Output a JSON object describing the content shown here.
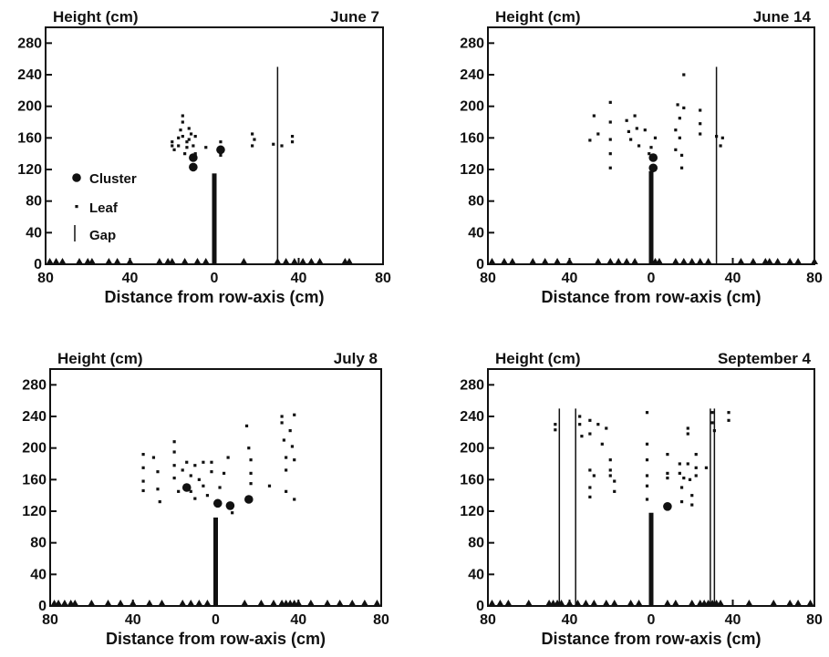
{
  "colors": {
    "ink": "#111111",
    "background": "#ffffff"
  },
  "legend": {
    "cluster_label": "Cluster",
    "leaf_label": "Leaf",
    "gap_label": "Gap"
  },
  "chart_data": [
    {
      "type": "scatter",
      "date": "June 7",
      "ylabel": "Height (cm)",
      "xlabel": "Distance from row-axis (cm)",
      "xlim": [
        -80,
        80
      ],
      "ylim": [
        0,
        300
      ],
      "x_tick_values": [
        -80,
        -40,
        0,
        40,
        80
      ],
      "x_tick_labels": [
        "80",
        "40",
        "0",
        "40",
        "80"
      ],
      "y_tick_values": [
        0,
        40,
        80,
        120,
        160,
        200,
        240,
        280
      ],
      "y_tick_labels": [
        "0",
        "40",
        "80",
        "120",
        "160",
        "200",
        "240",
        "280"
      ],
      "has_legend": true,
      "trunk": {
        "x": 0,
        "height": 115
      },
      "gaps": [
        {
          "x": 30,
          "height": 250
        }
      ],
      "clusters": [
        {
          "x": -10,
          "y": 135
        },
        {
          "x": -10,
          "y": 123
        },
        {
          "x": 3,
          "y": 145
        }
      ],
      "leaves": [
        {
          "x": -20,
          "y": 150
        },
        {
          "x": -20,
          "y": 155
        },
        {
          "x": -19,
          "y": 145
        },
        {
          "x": -17,
          "y": 160
        },
        {
          "x": -17,
          "y": 150
        },
        {
          "x": -16,
          "y": 170
        },
        {
          "x": -15,
          "y": 180
        },
        {
          "x": -15,
          "y": 188
        },
        {
          "x": -15,
          "y": 162
        },
        {
          "x": -14,
          "y": 140
        },
        {
          "x": -13,
          "y": 155
        },
        {
          "x": -13,
          "y": 148
        },
        {
          "x": -12,
          "y": 172
        },
        {
          "x": -12,
          "y": 158
        },
        {
          "x": -11,
          "y": 165
        },
        {
          "x": -10,
          "y": 150
        },
        {
          "x": -9,
          "y": 140
        },
        {
          "x": -9,
          "y": 162
        },
        {
          "x": -4,
          "y": 148
        },
        {
          "x": 3,
          "y": 155
        },
        {
          "x": 3,
          "y": 138
        },
        {
          "x": 18,
          "y": 165
        },
        {
          "x": 18,
          "y": 150
        },
        {
          "x": 19,
          "y": 158
        },
        {
          "x": 28,
          "y": 152
        },
        {
          "x": 32,
          "y": 150
        },
        {
          "x": 37,
          "y": 162
        },
        {
          "x": 37,
          "y": 155
        }
      ],
      "ground_markers": [
        -78,
        -75,
        -72,
        -64,
        -60,
        -58,
        -50,
        -46,
        -40,
        -26,
        -22,
        -20,
        -14,
        -8,
        -4,
        14,
        30,
        34,
        38,
        42,
        46,
        50,
        62,
        64
      ]
    },
    {
      "type": "scatter",
      "date": "June 14",
      "ylabel": "Height (cm)",
      "xlabel": "Distance from row-axis (cm)",
      "xlim": [
        -80,
        80
      ],
      "ylim": [
        0,
        300
      ],
      "x_tick_values": [
        -80,
        -40,
        0,
        40,
        80
      ],
      "x_tick_labels": [
        "80",
        "40",
        "0",
        "40",
        "80"
      ],
      "y_tick_values": [
        0,
        40,
        80,
        120,
        160,
        200,
        240,
        280
      ],
      "y_tick_labels": [
        "0",
        "40",
        "80",
        "120",
        "160",
        "200",
        "240",
        "280"
      ],
      "has_legend": false,
      "trunk": {
        "x": 0,
        "height": 118
      },
      "gaps": [
        {
          "x": 32,
          "height": 250
        }
      ],
      "clusters": [
        {
          "x": 1,
          "y": 135
        },
        {
          "x": 1,
          "y": 122
        }
      ],
      "leaves": [
        {
          "x": -30,
          "y": 157
        },
        {
          "x": -28,
          "y": 188
        },
        {
          "x": -26,
          "y": 165
        },
        {
          "x": -20,
          "y": 122
        },
        {
          "x": -20,
          "y": 140
        },
        {
          "x": -20,
          "y": 158
        },
        {
          "x": -20,
          "y": 180
        },
        {
          "x": -20,
          "y": 205
        },
        {
          "x": -12,
          "y": 182
        },
        {
          "x": -11,
          "y": 168
        },
        {
          "x": -10,
          "y": 158
        },
        {
          "x": -8,
          "y": 188
        },
        {
          "x": -7,
          "y": 172
        },
        {
          "x": -6,
          "y": 150
        },
        {
          "x": -3,
          "y": 170
        },
        {
          "x": -1,
          "y": 140
        },
        {
          "x": 0,
          "y": 148
        },
        {
          "x": 2,
          "y": 160
        },
        {
          "x": 12,
          "y": 145
        },
        {
          "x": 12,
          "y": 170
        },
        {
          "x": 13,
          "y": 202
        },
        {
          "x": 14,
          "y": 185
        },
        {
          "x": 14,
          "y": 160
        },
        {
          "x": 15,
          "y": 138
        },
        {
          "x": 15,
          "y": 122
        },
        {
          "x": 16,
          "y": 240
        },
        {
          "x": 16,
          "y": 198
        },
        {
          "x": 24,
          "y": 165
        },
        {
          "x": 24,
          "y": 178
        },
        {
          "x": 24,
          "y": 195
        },
        {
          "x": 32,
          "y": 162
        },
        {
          "x": 34,
          "y": 150
        },
        {
          "x": 35,
          "y": 160
        }
      ],
      "ground_markers": [
        -78,
        -72,
        -68,
        -58,
        -52,
        -46,
        -40,
        -26,
        -20,
        -16,
        -12,
        -8,
        2,
        4,
        12,
        16,
        20,
        24,
        28,
        44,
        50,
        56,
        58,
        62,
        68,
        72,
        80
      ]
    },
    {
      "type": "scatter",
      "date": "July 8",
      "ylabel": "Height (cm)",
      "xlabel": "Distance from row-axis (cm)",
      "xlim": [
        -80,
        80
      ],
      "ylim": [
        0,
        300
      ],
      "x_tick_values": [
        -80,
        -40,
        0,
        40,
        80
      ],
      "x_tick_labels": [
        "80",
        "40",
        "0",
        "40",
        "80"
      ],
      "y_tick_values": [
        0,
        40,
        80,
        120,
        160,
        200,
        240,
        280
      ],
      "y_tick_labels": [
        "0",
        "40",
        "80",
        "120",
        "160",
        "200",
        "240",
        "280"
      ],
      "has_legend": false,
      "trunk": {
        "x": 0,
        "height": 112
      },
      "gaps": [],
      "clusters": [
        {
          "x": -14,
          "y": 150
        },
        {
          "x": 1,
          "y": 130
        },
        {
          "x": 7,
          "y": 127
        },
        {
          "x": 16,
          "y": 135
        }
      ],
      "leaves": [
        {
          "x": -35,
          "y": 192
        },
        {
          "x": -35,
          "y": 175
        },
        {
          "x": -35,
          "y": 158
        },
        {
          "x": -35,
          "y": 146
        },
        {
          "x": -30,
          "y": 188
        },
        {
          "x": -28,
          "y": 170
        },
        {
          "x": -28,
          "y": 148
        },
        {
          "x": -27,
          "y": 132
        },
        {
          "x": -20,
          "y": 208
        },
        {
          "x": -20,
          "y": 195
        },
        {
          "x": -20,
          "y": 178
        },
        {
          "x": -20,
          "y": 162
        },
        {
          "x": -18,
          "y": 145
        },
        {
          "x": -16,
          "y": 172
        },
        {
          "x": -14,
          "y": 182
        },
        {
          "x": -12,
          "y": 165
        },
        {
          "x": -12,
          "y": 145
        },
        {
          "x": -10,
          "y": 178
        },
        {
          "x": -10,
          "y": 136
        },
        {
          "x": -8,
          "y": 160
        },
        {
          "x": -6,
          "y": 182
        },
        {
          "x": -6,
          "y": 152
        },
        {
          "x": -4,
          "y": 140
        },
        {
          "x": -2,
          "y": 170
        },
        {
          "x": -2,
          "y": 182
        },
        {
          "x": 2,
          "y": 150
        },
        {
          "x": 4,
          "y": 168
        },
        {
          "x": 6,
          "y": 188
        },
        {
          "x": 8,
          "y": 118
        },
        {
          "x": 15,
          "y": 228
        },
        {
          "x": 16,
          "y": 200
        },
        {
          "x": 17,
          "y": 185
        },
        {
          "x": 17,
          "y": 168
        },
        {
          "x": 17,
          "y": 155
        },
        {
          "x": 26,
          "y": 152
        },
        {
          "x": 32,
          "y": 240
        },
        {
          "x": 32,
          "y": 232
        },
        {
          "x": 33,
          "y": 210
        },
        {
          "x": 34,
          "y": 188
        },
        {
          "x": 34,
          "y": 172
        },
        {
          "x": 34,
          "y": 145
        },
        {
          "x": 36,
          "y": 222
        },
        {
          "x": 37,
          "y": 202
        },
        {
          "x": 38,
          "y": 185
        },
        {
          "x": 38,
          "y": 242
        },
        {
          "x": 38,
          "y": 135
        }
      ],
      "ground_markers": [
        -78,
        -76,
        -73,
        -70,
        -68,
        -60,
        -52,
        -46,
        -40,
        -32,
        -26,
        -16,
        -12,
        -8,
        -4,
        14,
        22,
        28,
        32,
        34,
        36,
        38,
        40,
        46,
        54,
        60,
        66,
        72,
        78
      ]
    },
    {
      "type": "scatter",
      "date": "September 4",
      "ylabel": "Height (cm)",
      "xlabel": "Distance from row-axis (cm)",
      "xlim": [
        -80,
        80
      ],
      "ylim": [
        0,
        300
      ],
      "x_tick_values": [
        -80,
        -40,
        0,
        40,
        80
      ],
      "x_tick_labels": [
        "80",
        "40",
        "0",
        "40",
        "80"
      ],
      "y_tick_values": [
        0,
        40,
        80,
        120,
        160,
        200,
        240,
        280
      ],
      "y_tick_labels": [
        "0",
        "40",
        "80",
        "120",
        "160",
        "200",
        "240",
        "280"
      ],
      "has_legend": false,
      "trunk": {
        "x": 0,
        "height": 118
      },
      "gaps": [
        {
          "x": -45,
          "height": 250
        },
        {
          "x": -37,
          "height": 250
        },
        {
          "x": 29,
          "height": 250
        },
        {
          "x": 31,
          "height": 250
        }
      ],
      "clusters": [
        {
          "x": 8,
          "y": 126
        }
      ],
      "leaves": [
        {
          "x": -47,
          "y": 230
        },
        {
          "x": -47,
          "y": 223
        },
        {
          "x": -35,
          "y": 240
        },
        {
          "x": -35,
          "y": 230
        },
        {
          "x": -34,
          "y": 215
        },
        {
          "x": -30,
          "y": 235
        },
        {
          "x": -30,
          "y": 218
        },
        {
          "x": -30,
          "y": 172
        },
        {
          "x": -30,
          "y": 150
        },
        {
          "x": -30,
          "y": 138
        },
        {
          "x": -28,
          "y": 165
        },
        {
          "x": -26,
          "y": 230
        },
        {
          "x": -24,
          "y": 205
        },
        {
          "x": -22,
          "y": 225
        },
        {
          "x": -20,
          "y": 185
        },
        {
          "x": -20,
          "y": 172
        },
        {
          "x": -20,
          "y": 165
        },
        {
          "x": -18,
          "y": 158
        },
        {
          "x": -18,
          "y": 145
        },
        {
          "x": -2,
          "y": 245
        },
        {
          "x": -2,
          "y": 205
        },
        {
          "x": -2,
          "y": 185
        },
        {
          "x": -2,
          "y": 165
        },
        {
          "x": -2,
          "y": 152
        },
        {
          "x": -2,
          "y": 135
        },
        {
          "x": 8,
          "y": 192
        },
        {
          "x": 8,
          "y": 168
        },
        {
          "x": 8,
          "y": 162
        },
        {
          "x": 14,
          "y": 180
        },
        {
          "x": 14,
          "y": 168
        },
        {
          "x": 15,
          "y": 150
        },
        {
          "x": 15,
          "y": 132
        },
        {
          "x": 16,
          "y": 162
        },
        {
          "x": 18,
          "y": 225
        },
        {
          "x": 18,
          "y": 218
        },
        {
          "x": 18,
          "y": 180
        },
        {
          "x": 19,
          "y": 160
        },
        {
          "x": 20,
          "y": 140
        },
        {
          "x": 20,
          "y": 128
        },
        {
          "x": 22,
          "y": 192
        },
        {
          "x": 22,
          "y": 175
        },
        {
          "x": 22,
          "y": 165
        },
        {
          "x": 27,
          "y": 175
        },
        {
          "x": 30,
          "y": 245
        },
        {
          "x": 30,
          "y": 232
        },
        {
          "x": 31,
          "y": 222
        },
        {
          "x": 38,
          "y": 245
        },
        {
          "x": 38,
          "y": 235
        }
      ],
      "ground_markers": [
        -78,
        -74,
        -70,
        -60,
        -50,
        -48,
        -46,
        -44,
        -40,
        -36,
        -32,
        -28,
        -22,
        -18,
        -10,
        -6,
        8,
        12,
        20,
        24,
        26,
        28,
        30,
        32,
        34,
        48,
        60,
        68,
        72,
        78
      ]
    }
  ]
}
